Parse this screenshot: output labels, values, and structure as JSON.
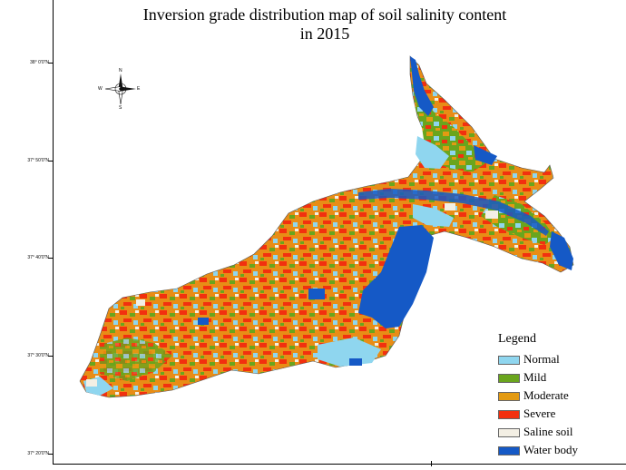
{
  "title_line1": "Inversion grade distribution map of soil salinity content",
  "title_line2": "in 2015",
  "latitude_labels": [
    "38° 0'0\"N",
    "37° 50'0\"N",
    "37° 40'0\"N",
    "37° 30'0\"N",
    "37° 20'0\"N"
  ],
  "compass": {
    "n": "N",
    "s": "S",
    "e": "E",
    "w": "W",
    "icon": "north-arrow-compass-icon"
  },
  "legend": {
    "title": "Legend",
    "items": [
      {
        "label": "Normal",
        "color": "#8fd6ef"
      },
      {
        "label": "Mild",
        "color": "#6aa51d"
      },
      {
        "label": "Moderate",
        "color": "#e39a12"
      },
      {
        "label": "Severe",
        "color": "#f2300f"
      },
      {
        "label": "Saline soil",
        "color": "#f3efe4"
      },
      {
        "label": "Water body",
        "color": "#1559c6"
      }
    ]
  }
}
